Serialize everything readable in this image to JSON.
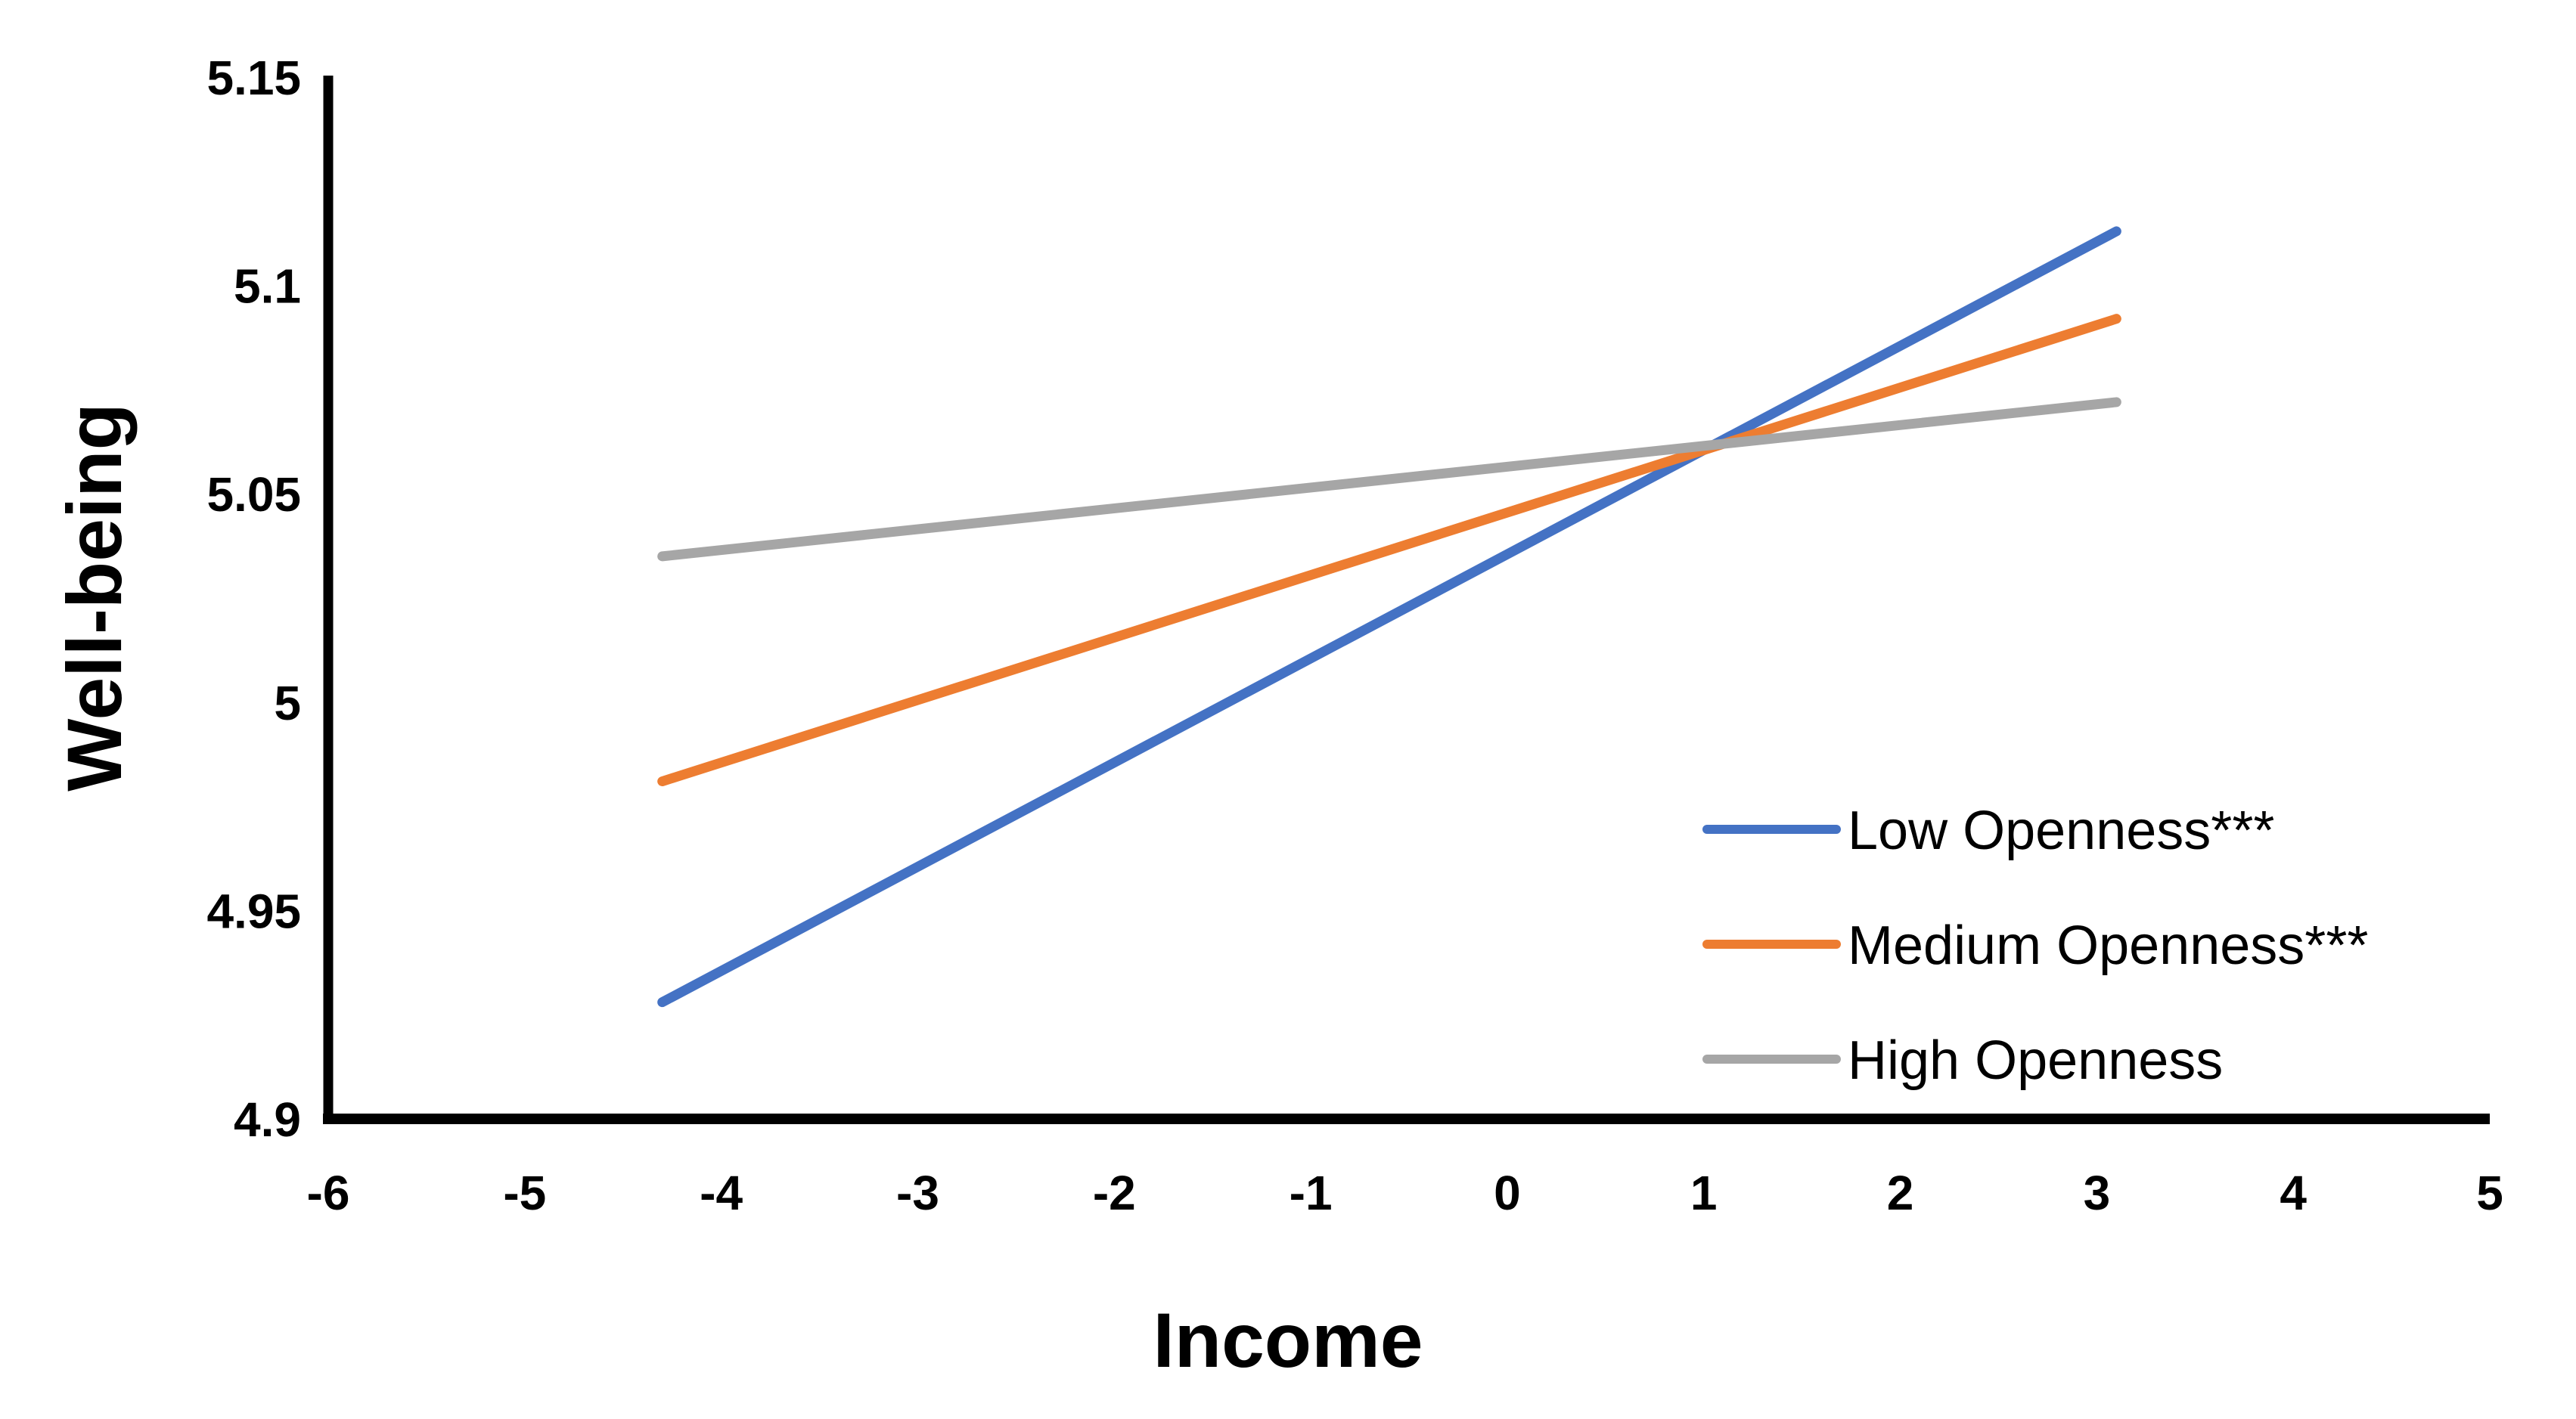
{
  "chart_data": {
    "type": "line",
    "title": "",
    "xlabel": "Income",
    "ylabel": "Well-being",
    "xlim": [
      -6,
      5
    ],
    "ylim": [
      4.9,
      5.15
    ],
    "x_ticks": [
      -6,
      -5,
      -4,
      -3,
      -2,
      -1,
      0,
      1,
      2,
      3,
      4,
      5
    ],
    "y_ticks": [
      4.9,
      4.95,
      5,
      5.05,
      5.1,
      5.15
    ],
    "y_tick_labels": [
      "4.9",
      "4.95",
      "5",
      "5.05",
      "5.1",
      "5.15"
    ],
    "grid": false,
    "legend_position": "inside-right",
    "background_color": "#FFFFFF",
    "axis_color": "#000000",
    "text_color": "#000000",
    "series": [
      {
        "name": "Low Openness***",
        "color": "#4472C4",
        "x": [
          -4.3,
          3.1
        ],
        "y": [
          4.928,
          5.113
        ]
      },
      {
        "name": "Medium Openness***",
        "color": "#ED7D31",
        "x": [
          -4.3,
          3.1
        ],
        "y": [
          4.981,
          5.092
        ]
      },
      {
        "name": "High Openness",
        "color": "#A6A6A6",
        "x": [
          -4.3,
          3.1
        ],
        "y": [
          5.035,
          5.072
        ]
      }
    ]
  }
}
